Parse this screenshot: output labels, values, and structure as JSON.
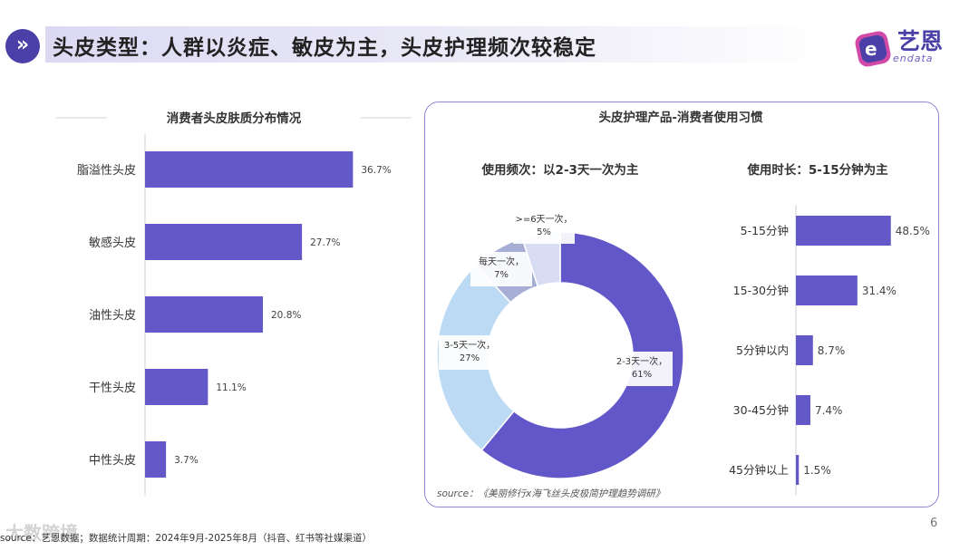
{
  "header": {
    "title": "头皮类型：人群以炎症、敏皮为主，头皮护理频次较稳定",
    "logo_name": "艺恩",
    "logo_sub": "endata",
    "accent": "#4b3fa8"
  },
  "chart_data": [
    {
      "type": "bar",
      "orientation": "horizontal",
      "title": "消费者头皮肤质分布情况",
      "categories": [
        "脂溢性头皮",
        "敏感头皮",
        "油性头皮",
        "干性头皮",
        "中性头皮"
      ],
      "values": [
        36.7,
        27.7,
        20.8,
        11.1,
        3.7
      ],
      "labels": [
        "36.7%",
        "27.7%",
        "20.8%",
        "11.1%",
        "3.7%"
      ],
      "color": "#6358c8",
      "xlim": [
        0,
        40
      ]
    },
    {
      "type": "pie",
      "variant": "donut",
      "panel_title": "头皮护理产品-消费者使用习惯",
      "title": "使用频次：以2-3天一次为主",
      "slices": [
        {
          "name": "2-3天一次",
          "value": 61,
          "label": "61%",
          "color": "#6257c8"
        },
        {
          "name": "3-5天一次",
          "value": 27,
          "label": "27%",
          "color": "#bcdaf3"
        },
        {
          "name": "每天一次",
          "value": 7,
          "label": "7%",
          "color": "#a7aed6"
        },
        {
          "name": ">=6天一次",
          "value": 5,
          "label": "5%",
          "color": "#d9ddf4"
        }
      ]
    },
    {
      "type": "bar",
      "orientation": "horizontal",
      "title": "使用时长：5-15分钟为主",
      "categories": [
        "5-15分钟",
        "15-30分钟",
        "5分钟以内",
        "30-45分钟",
        "45分钟以上"
      ],
      "values": [
        48.5,
        31.4,
        8.7,
        7.4,
        1.5
      ],
      "labels": [
        "48.5%",
        "31.4%",
        "8.7%",
        "7.4%",
        "1.5%"
      ],
      "color": "#6358c8",
      "xlim": [
        0,
        50
      ]
    }
  ],
  "source_note": "source：《美丽修行x海飞丝头皮极简护理趋势调研》",
  "footer": "source：艺恩数据；数据统计周期：2024年9月-2025年8月（抖音、红书等社媒渠道）",
  "page_number": "6",
  "watermark": "大数跨境"
}
